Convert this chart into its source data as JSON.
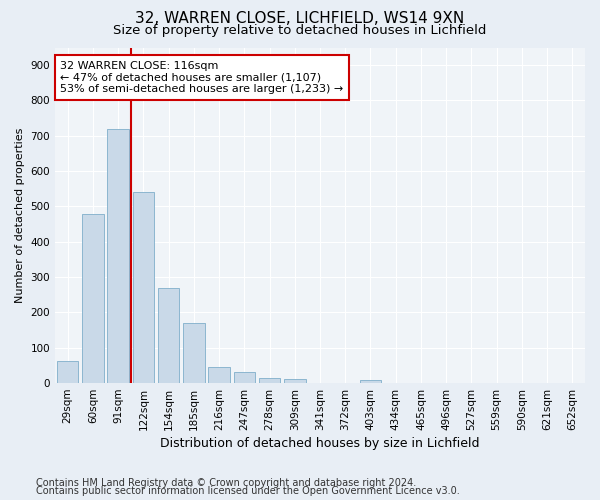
{
  "title1": "32, WARREN CLOSE, LICHFIELD, WS14 9XN",
  "title2": "Size of property relative to detached houses in Lichfield",
  "xlabel": "Distribution of detached houses by size in Lichfield",
  "ylabel": "Number of detached properties",
  "categories": [
    "29sqm",
    "60sqm",
    "91sqm",
    "122sqm",
    "154sqm",
    "185sqm",
    "216sqm",
    "247sqm",
    "278sqm",
    "309sqm",
    "341sqm",
    "372sqm",
    "403sqm",
    "434sqm",
    "465sqm",
    "496sqm",
    "527sqm",
    "559sqm",
    "590sqm",
    "621sqm",
    "652sqm"
  ],
  "values": [
    62,
    480,
    720,
    540,
    270,
    170,
    45,
    30,
    15,
    12,
    0,
    0,
    8,
    0,
    0,
    0,
    0,
    0,
    0,
    0,
    0
  ],
  "bar_color": "#c9d9e8",
  "bar_edge_color": "#7faecb",
  "vline_color": "#cc0000",
  "annotation_text": "32 WARREN CLOSE: 116sqm\n← 47% of detached houses are smaller (1,107)\n53% of semi-detached houses are larger (1,233) →",
  "annotation_box_color": "#ffffff",
  "annotation_box_edge_color": "#cc0000",
  "ylim": [
    0,
    950
  ],
  "yticks": [
    0,
    100,
    200,
    300,
    400,
    500,
    600,
    700,
    800,
    900
  ],
  "bg_color": "#e8eef5",
  "plot_bg_color": "#f0f4f8",
  "footer1": "Contains HM Land Registry data © Crown copyright and database right 2024.",
  "footer2": "Contains public sector information licensed under the Open Government Licence v3.0.",
  "title1_fontsize": 11,
  "title2_fontsize": 9.5,
  "xlabel_fontsize": 9,
  "ylabel_fontsize": 8,
  "tick_fontsize": 7.5,
  "footer_fontsize": 7
}
